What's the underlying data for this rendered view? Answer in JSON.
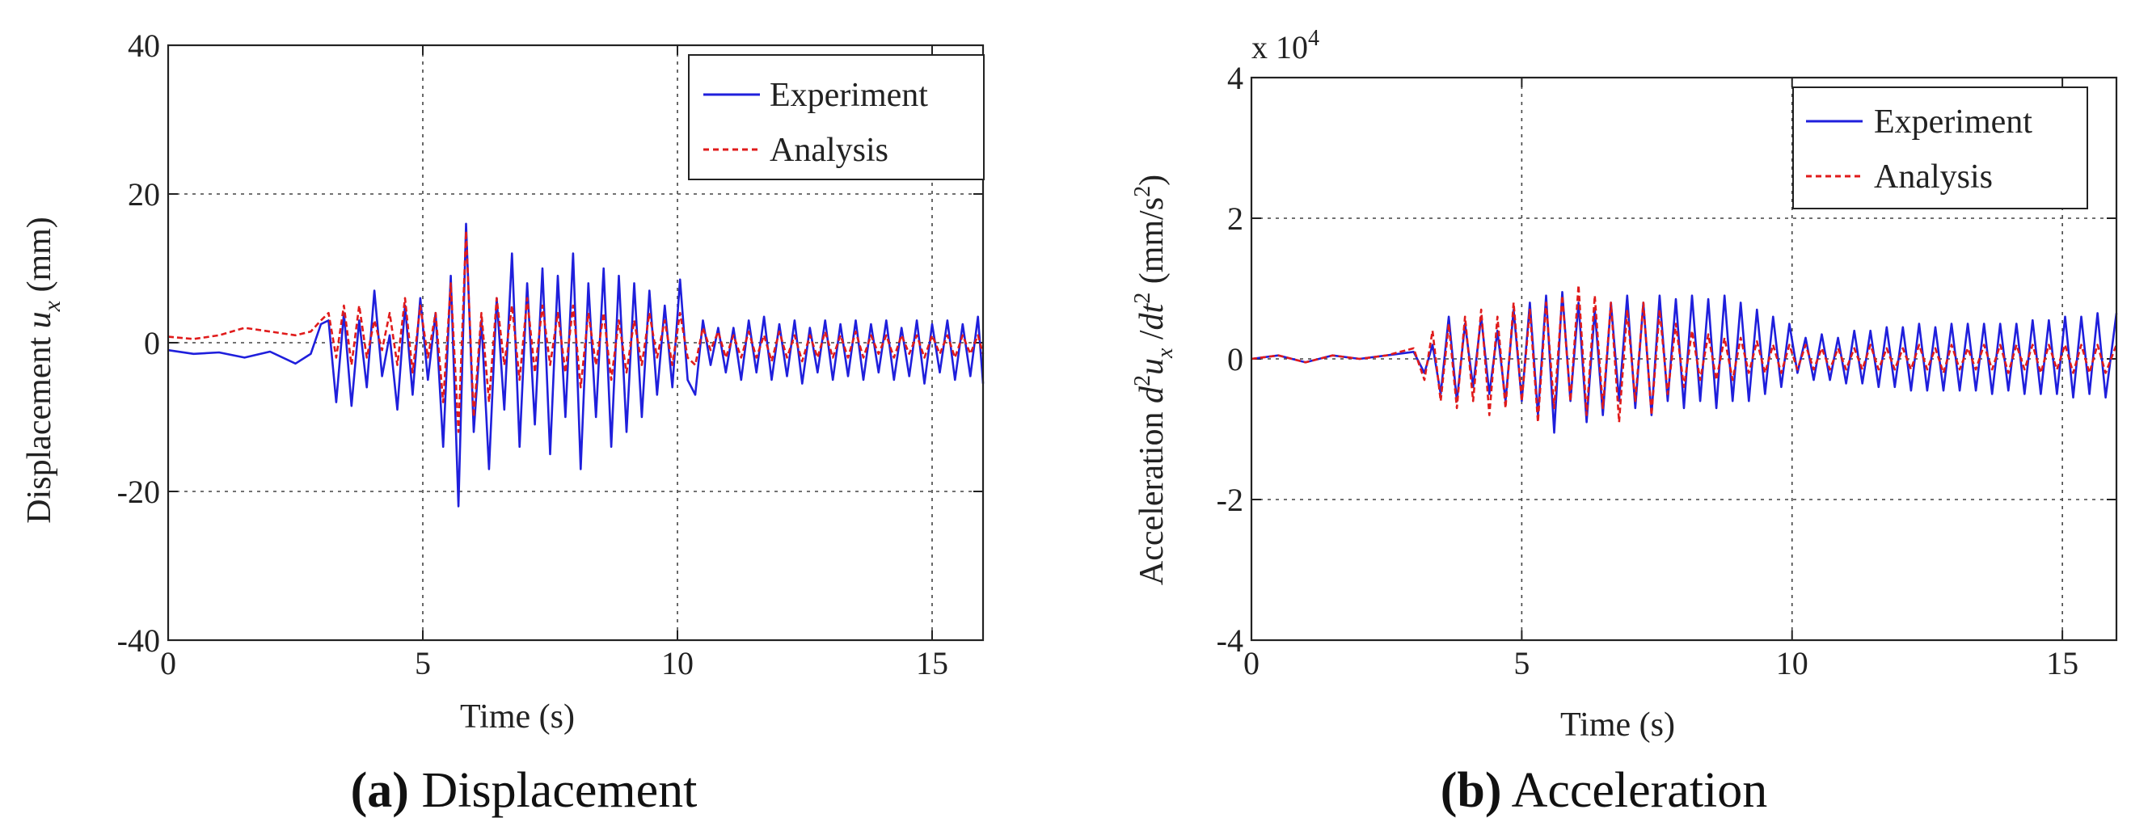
{
  "chart_data": [
    {
      "type": "line",
      "panel": "a",
      "caption_letter": "(a)",
      "caption_text": " Displacement",
      "xlabel": "Time (s)",
      "ylabel_prefix": "Displacement ",
      "ylabel_symbol": "u",
      "ylabel_sub": "x",
      "ylabel_suffix": " (mm)",
      "xlim": [
        0,
        16
      ],
      "ylim": [
        -40,
        40
      ],
      "xticks": [
        0,
        5,
        10,
        15
      ],
      "yticks": [
        -40,
        -20,
        0,
        20,
        40
      ],
      "xtick_labels": [
        "0",
        "5",
        "10",
        "15"
      ],
      "ytick_labels": [
        "-40",
        "-20",
        "0",
        "20",
        "40"
      ],
      "grid": true,
      "legend_position": "top-right",
      "series": [
        {
          "name": "Experiment",
          "color": "#1f1fdc",
          "style": "solid",
          "x": [
            0,
            0.5,
            1.0,
            1.5,
            2.0,
            2.5,
            2.8,
            3.0,
            3.15,
            3.3,
            3.45,
            3.6,
            3.75,
            3.9,
            4.05,
            4.2,
            4.35,
            4.5,
            4.65,
            4.8,
            4.95,
            5.1,
            5.25,
            5.4,
            5.55,
            5.7,
            5.85,
            6.0,
            6.15,
            6.3,
            6.45,
            6.6,
            6.75,
            6.9,
            7.05,
            7.2,
            7.35,
            7.5,
            7.65,
            7.8,
            7.95,
            8.1,
            8.25,
            8.4,
            8.55,
            8.7,
            8.85,
            9.0,
            9.15,
            9.3,
            9.45,
            9.6,
            9.75,
            9.9,
            10.05,
            10.2,
            10.35,
            10.5,
            10.65,
            10.8,
            10.95,
            11.1,
            11.25,
            11.4,
            11.55,
            11.7,
            11.85,
            12.0,
            12.15,
            12.3,
            12.45,
            12.6,
            12.75,
            12.9,
            13.05,
            13.2,
            13.35,
            13.5,
            13.65,
            13.8,
            13.95,
            14.1,
            14.25,
            14.4,
            14.55,
            14.7,
            14.85,
            15.0,
            15.15,
            15.3,
            15.45,
            15.6,
            15.75,
            15.9,
            16.0
          ],
          "values": [
            -1.0,
            -1.5,
            -1.3,
            -2.0,
            -1.2,
            -2.8,
            -1.5,
            2.5,
            3.0,
            -8.0,
            4.0,
            -8.5,
            3.0,
            -6.0,
            7.0,
            -4.5,
            1.0,
            -9.0,
            5.0,
            -7.0,
            6.0,
            -5.0,
            4.0,
            -14.0,
            9.0,
            -22.0,
            16.0,
            -12.0,
            3.0,
            -17.0,
            6.0,
            -9.0,
            12.0,
            -14.0,
            8.0,
            -11.0,
            10.0,
            -15.0,
            9.0,
            -10.0,
            12.0,
            -17.0,
            8.0,
            -10.0,
            10.0,
            -14.0,
            9.0,
            -12.0,
            8.0,
            -10.0,
            7.0,
            -7.0,
            5.0,
            -6.0,
            8.5,
            -5.0,
            -7.0,
            3.0,
            -3.0,
            2.0,
            -4.0,
            2.0,
            -5.0,
            3.0,
            -4.0,
            3.5,
            -5.0,
            2.5,
            -4.5,
            3.0,
            -5.5,
            2.0,
            -4.0,
            3.0,
            -5.0,
            2.5,
            -4.5,
            3.0,
            -5.0,
            2.5,
            -4.0,
            3.0,
            -5.0,
            2.0,
            -4.5,
            3.0,
            -5.5,
            2.5,
            -4.0,
            3.0,
            -5.0,
            2.5,
            -4.5,
            3.5,
            -5.5
          ]
        },
        {
          "name": "Analysis",
          "color": "#e01b1b",
          "style": "dashed",
          "x": [
            0,
            0.5,
            1.0,
            1.5,
            2.0,
            2.5,
            2.8,
            3.0,
            3.15,
            3.3,
            3.45,
            3.6,
            3.75,
            3.9,
            4.05,
            4.2,
            4.35,
            4.5,
            4.65,
            4.8,
            4.95,
            5.1,
            5.25,
            5.4,
            5.55,
            5.7,
            5.85,
            6.0,
            6.15,
            6.3,
            6.45,
            6.6,
            6.75,
            6.9,
            7.05,
            7.2,
            7.35,
            7.5,
            7.65,
            7.8,
            7.95,
            8.1,
            8.25,
            8.4,
            8.55,
            8.7,
            8.85,
            9.0,
            9.15,
            9.3,
            9.45,
            9.6,
            9.75,
            9.9,
            10.05,
            10.2,
            10.35,
            10.5,
            10.65,
            10.8,
            10.95,
            11.1,
            11.25,
            11.4,
            11.55,
            11.7,
            11.85,
            12.0,
            12.15,
            12.3,
            12.45,
            12.6,
            12.75,
            12.9,
            13.05,
            13.2,
            13.35,
            13.5,
            13.65,
            13.8,
            13.95,
            14.1,
            14.25,
            14.4,
            14.55,
            14.7,
            14.85,
            15.0,
            15.15,
            15.3,
            15.45,
            15.6,
            15.75,
            15.9,
            16.0
          ],
          "values": [
            0.8,
            0.5,
            1.0,
            2.0,
            1.5,
            1.0,
            1.5,
            3.0,
            4.0,
            -2.0,
            5.0,
            -3.0,
            5.0,
            -2.0,
            3.0,
            -1.0,
            4.0,
            -3.0,
            6.0,
            -4.0,
            5.0,
            -2.0,
            4.0,
            -8.0,
            8.0,
            -12.0,
            15.0,
            -10.0,
            4.0,
            -8.0,
            6.0,
            -3.0,
            5.0,
            -5.0,
            6.0,
            -4.0,
            5.0,
            -3.0,
            4.0,
            -4.0,
            5.0,
            -6.0,
            4.0,
            -3.0,
            4.0,
            -5.0,
            3.0,
            -4.0,
            3.0,
            -3.0,
            4.0,
            -2.0,
            3.0,
            -3.0,
            4.0,
            -2.0,
            -3.0,
            2.0,
            -1.0,
            1.5,
            -2.0,
            1.0,
            -2.0,
            1.5,
            -2.0,
            1.0,
            -2.5,
            1.5,
            -2.0,
            1.0,
            -2.5,
            1.0,
            -2.0,
            1.5,
            -2.0,
            1.0,
            -2.0,
            1.5,
            -2.0,
            1.0,
            -1.5,
            1.0,
            -2.0,
            1.0,
            -1.5,
            1.0,
            -2.0,
            1.0,
            -1.5,
            1.0,
            -2.0,
            1.0,
            -1.5,
            1.0,
            -1.5
          ]
        }
      ]
    },
    {
      "type": "line",
      "panel": "b",
      "caption_letter": "(b)",
      "caption_text": " Acceleration",
      "xlabel": "Time (s)",
      "ylabel_prefix": "Acceleration ",
      "ylabel_d2": "d",
      "ylabel_sup2": "2",
      "ylabel_symbol": "u",
      "ylabel_sub": "x",
      "ylabel_slash": " /",
      "ylabel_dt": "dt",
      "ylabel_sup_dt": "2",
      "ylabel_units_open": " (mm/s",
      "ylabel_units_sup": "2",
      "ylabel_units_close": ")",
      "scale_label_base": "x 10",
      "scale_label_exp": "4",
      "xlim": [
        0,
        16
      ],
      "ylim": [
        -4,
        4
      ],
      "xticks": [
        0,
        5,
        10,
        15
      ],
      "yticks": [
        -4,
        -2,
        0,
        2,
        4
      ],
      "xtick_labels": [
        "0",
        "5",
        "10",
        "15"
      ],
      "ytick_labels": [
        "-4",
        "-2",
        "0",
        "2",
        "4"
      ],
      "grid": true,
      "legend_position": "top-right",
      "series": [
        {
          "name": "Experiment",
          "color": "#1f1fdc",
          "style": "solid",
          "x": [
            0,
            0.5,
            1.0,
            1.5,
            2.0,
            2.5,
            3.0,
            3.2,
            3.35,
            3.5,
            3.65,
            3.8,
            3.95,
            4.1,
            4.25,
            4.4,
            4.55,
            4.7,
            4.85,
            5.0,
            5.15,
            5.3,
            5.45,
            5.6,
            5.75,
            5.9,
            6.05,
            6.2,
            6.35,
            6.5,
            6.65,
            6.8,
            6.95,
            7.1,
            7.25,
            7.4,
            7.55,
            7.7,
            7.85,
            8.0,
            8.15,
            8.3,
            8.45,
            8.6,
            8.75,
            8.9,
            9.05,
            9.2,
            9.35,
            9.5,
            9.65,
            9.8,
            9.95,
            10.1,
            10.25,
            10.4,
            10.55,
            10.7,
            10.85,
            11.0,
            11.15,
            11.3,
            11.45,
            11.6,
            11.75,
            11.9,
            12.05,
            12.2,
            12.35,
            12.5,
            12.65,
            12.8,
            12.95,
            13.1,
            13.25,
            13.4,
            13.55,
            13.7,
            13.85,
            14.0,
            14.15,
            14.3,
            14.45,
            14.6,
            14.75,
            14.9,
            15.05,
            15.2,
            15.35,
            15.5,
            15.65,
            15.8,
            16.0
          ],
          "values": [
            0.0,
            0.05,
            -0.05,
            0.05,
            0.0,
            0.05,
            0.1,
            -0.2,
            0.2,
            -0.5,
            0.6,
            -0.6,
            0.5,
            -0.4,
            0.6,
            -0.5,
            0.4,
            -0.6,
            0.7,
            -0.6,
            0.8,
            -0.8,
            0.9,
            -1.05,
            0.95,
            -0.6,
            0.8,
            -0.9,
            0.7,
            -0.8,
            0.8,
            -0.6,
            0.9,
            -0.7,
            0.8,
            -0.8,
            0.9,
            -0.6,
            0.85,
            -0.7,
            0.9,
            -0.6,
            0.85,
            -0.7,
            0.9,
            -0.6,
            0.8,
            -0.6,
            0.7,
            -0.5,
            0.6,
            -0.4,
            0.5,
            -0.2,
            0.3,
            -0.3,
            0.35,
            -0.3,
            0.3,
            -0.35,
            0.4,
            -0.35,
            0.4,
            -0.4,
            0.45,
            -0.4,
            0.45,
            -0.45,
            0.5,
            -0.45,
            0.45,
            -0.45,
            0.5,
            -0.45,
            0.5,
            -0.45,
            0.5,
            -0.5,
            0.5,
            -0.45,
            0.5,
            -0.5,
            0.55,
            -0.5,
            0.55,
            -0.5,
            0.6,
            -0.55,
            0.6,
            -0.5,
            0.65,
            -0.55,
            0.65
          ]
        },
        {
          "name": "Analysis",
          "color": "#e01b1b",
          "style": "dashed",
          "x": [
            0,
            0.5,
            1.0,
            1.5,
            2.0,
            2.5,
            3.0,
            3.2,
            3.35,
            3.5,
            3.65,
            3.8,
            3.95,
            4.1,
            4.25,
            4.4,
            4.55,
            4.7,
            4.85,
            5.0,
            5.15,
            5.3,
            5.45,
            5.6,
            5.75,
            5.9,
            6.05,
            6.2,
            6.35,
            6.5,
            6.65,
            6.8,
            6.95,
            7.1,
            7.25,
            7.4,
            7.55,
            7.7,
            7.85,
            8.0,
            8.15,
            8.3,
            8.45,
            8.6,
            8.75,
            8.9,
            9.05,
            9.2,
            9.35,
            9.5,
            9.65,
            9.8,
            9.95,
            10.1,
            10.25,
            10.4,
            10.55,
            10.7,
            10.85,
            11.0,
            11.15,
            11.3,
            11.45,
            11.6,
            11.75,
            11.9,
            12.05,
            12.2,
            12.35,
            12.5,
            12.65,
            12.8,
            12.95,
            13.1,
            13.25,
            13.4,
            13.55,
            13.7,
            13.85,
            14.0,
            14.15,
            14.3,
            14.45,
            14.6,
            14.75,
            14.9,
            15.05,
            15.2,
            15.35,
            15.5,
            15.65,
            15.8,
            16.0
          ],
          "values": [
            0.0,
            0.05,
            -0.05,
            0.05,
            0.0,
            0.05,
            0.15,
            -0.3,
            0.4,
            -0.6,
            0.5,
            -0.7,
            0.6,
            -0.6,
            0.7,
            -0.8,
            0.6,
            -0.7,
            0.8,
            -0.6,
            0.7,
            -0.9,
            0.8,
            -0.7,
            0.9,
            -0.6,
            1.05,
            -0.8,
            0.9,
            -0.7,
            0.8,
            -0.9,
            0.7,
            -0.6,
            0.8,
            -0.8,
            0.7,
            -0.5,
            0.5,
            -0.4,
            0.4,
            -0.3,
            0.35,
            -0.3,
            0.3,
            -0.3,
            0.3,
            -0.2,
            0.25,
            -0.2,
            0.2,
            -0.2,
            0.2,
            -0.15,
            0.2,
            -0.15,
            0.15,
            -0.15,
            0.15,
            -0.15,
            0.15,
            -0.15,
            0.2,
            -0.15,
            0.15,
            -0.15,
            0.15,
            -0.15,
            0.2,
            -0.15,
            0.15,
            -0.2,
            0.2,
            -0.15,
            0.15,
            -0.15,
            0.2,
            -0.15,
            0.2,
            -0.2,
            0.2,
            -0.15,
            0.2,
            -0.2,
            0.2,
            -0.15,
            0.2,
            -0.2,
            0.2,
            -0.2,
            0.2,
            -0.2,
            0.2
          ]
        }
      ]
    }
  ]
}
